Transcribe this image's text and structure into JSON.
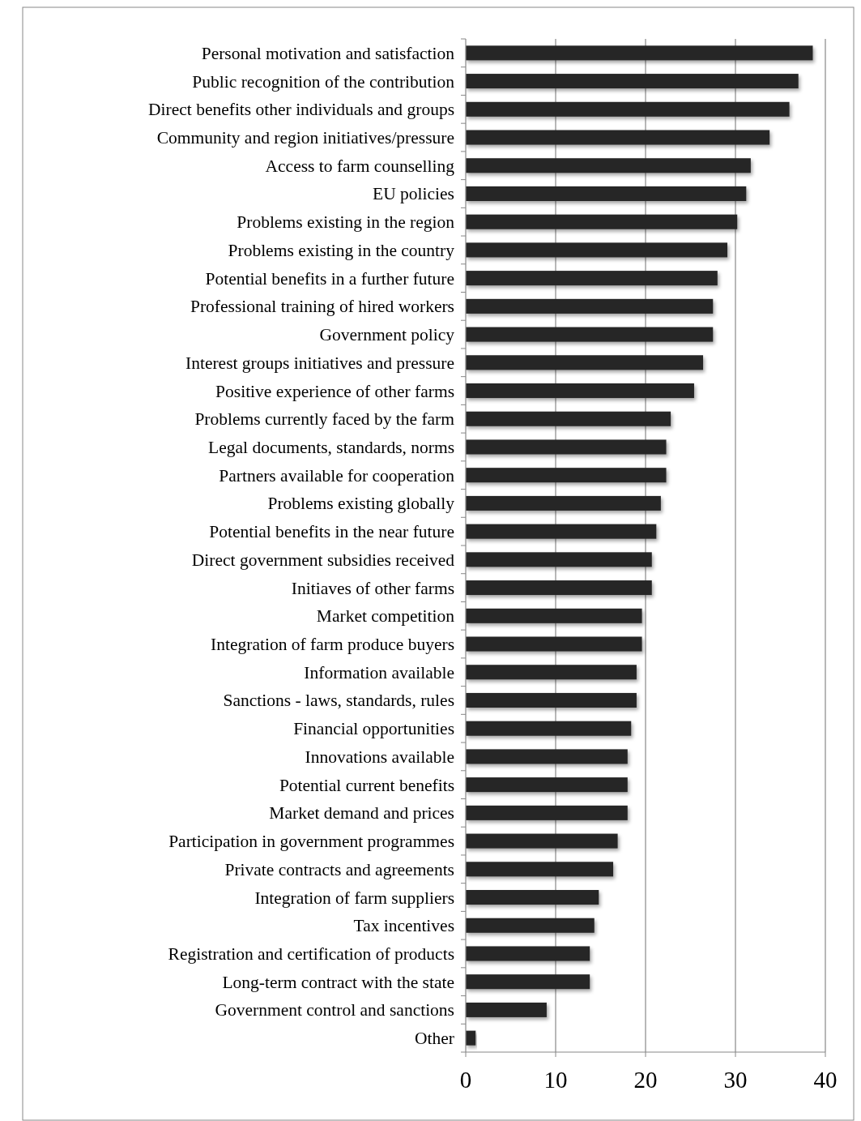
{
  "chart_data": {
    "type": "bar",
    "orientation": "horizontal",
    "categories": [
      "Personal motivation and satisfaction",
      "Public recognition of the contribution",
      "Direct benefits other individuals and groups",
      "Community and region initiatives/pressure",
      "Access to farm counselling",
      "EU policies",
      "Problems existing in the region",
      "Problems existing in the country",
      "Potential benefits in a further future",
      "Professional training of hired workers",
      "Government policy",
      "Interest groups initiatives and pressure",
      "Positive experience of other farms",
      "Problems currently faced by the farm",
      "Legal documents, standards, norms",
      "Partners available for cooperation",
      "Problems existing globally",
      "Potential benefits in the near future",
      "Direct government subsidies received",
      "Initiaves of other farms",
      "Market competition",
      "Integration of farm produce buyers",
      "Information available",
      "Sanctions - laws, standards, rules",
      "Financial opportunities",
      "Innovations available",
      "Potential current benefits",
      "Market demand and prices",
      "Participation in government programmes",
      "Private contracts and agreements",
      "Integration of farm suppliers",
      "Tax incentives",
      "Registration and certification of products",
      "Long-term contract with the state",
      "Government control and sanctions",
      "Other"
    ],
    "values": [
      38.6,
      37.0,
      36.0,
      33.8,
      31.7,
      31.2,
      30.2,
      29.1,
      28.0,
      27.5,
      27.5,
      26.4,
      25.4,
      22.8,
      22.3,
      22.3,
      21.7,
      21.2,
      20.7,
      20.7,
      19.6,
      19.6,
      19.0,
      19.0,
      18.4,
      18.0,
      18.0,
      18.0,
      16.9,
      16.4,
      14.8,
      14.3,
      13.8,
      13.8,
      9.0,
      1.1
    ],
    "color": "#262626",
    "xlim": [
      0,
      40
    ],
    "xticks": [
      0,
      10,
      20,
      30,
      40
    ],
    "grid": "x"
  }
}
